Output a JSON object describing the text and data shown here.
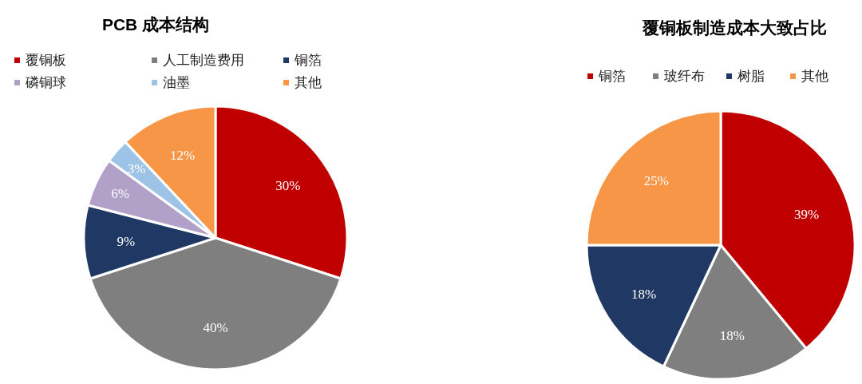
{
  "chart_data": [
    {
      "type": "pie",
      "title": "PCB 成本结构",
      "legend": "top left",
      "categories": [
        "覆铜板",
        "人工制造费用",
        "铜箔",
        "磷铜球",
        "油墨",
        "其他"
      ],
      "values": [
        30,
        40,
        9,
        6,
        3,
        12
      ],
      "value_labels": [
        "30%",
        "40%",
        "9%",
        "6%",
        "3%",
        "12%"
      ],
      "colors": [
        "#c00000",
        "#7f7f7f",
        "#1f3864",
        "#b1a0c7",
        "#9dc3e6",
        "#f79646"
      ]
    },
    {
      "type": "pie",
      "title": "覆铜板制造成本大致占比",
      "legend": "top",
      "categories": [
        "铜箔",
        "玻纤布",
        "树脂",
        "其他"
      ],
      "values": [
        39,
        18,
        18,
        25
      ],
      "value_labels": [
        "39%",
        "18%",
        "18%",
        "25%"
      ],
      "colors": [
        "#c00000",
        "#7f7f7f",
        "#1f3864",
        "#f79646"
      ]
    }
  ]
}
